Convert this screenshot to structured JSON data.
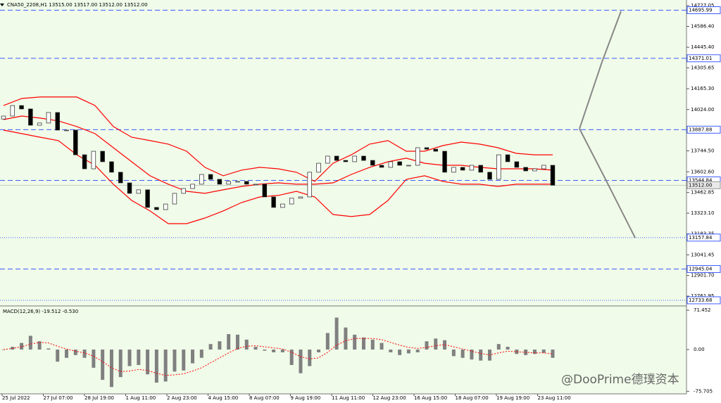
{
  "chart_data": {
    "type": "candlestick",
    "title": "CNA50_2208,H1  13515.00 13517.00 13512.00 13512.00",
    "background": "#f0fbe9",
    "up_color": "#ffffff",
    "down_color": "#000000",
    "x_labels": [
      "25 Jul 2022",
      "27 Jul 07:00",
      "28 Jul 19:00",
      "1 Aug 11:00",
      "2 Aug 23:00",
      "4 Aug 15:00",
      "8 Aug 07:00",
      "9 Aug 19:00",
      "11 Aug 11:00",
      "12 Aug 23:00",
      "16 Aug 15:00",
      "18 Aug 07:00",
      "19 Aug 19:00",
      "23 Aug 11:00"
    ],
    "open": [
      13960,
      13980,
      14051,
      14028,
      13918,
      13933,
      14004,
      13885,
      13885,
      13718,
      13623,
      13742,
      13671,
      13600,
      13528,
      13457,
      13481,
      13362,
      13347,
      13385,
      13457,
      13490,
      13519,
      13585,
      13552,
      13519,
      13538,
      13538,
      13519,
      13519,
      13433,
      13362,
      13385,
      13424,
      13433,
      13600,
      13661,
      13709,
      13680,
      13671,
      13709,
      13680,
      13647,
      13633,
      13671,
      13647,
      13647,
      13766,
      13756,
      13742,
      13600,
      13633,
      13614,
      13647,
      13600,
      13552,
      13718,
      13671,
      13633,
      13609,
      13623,
      13647
    ],
    "close": [
      13980,
      14051,
      14028,
      13918,
      13933,
      14004,
      13885,
      13885,
      13718,
      13623,
      13742,
      13671,
      13600,
      13528,
      13457,
      13481,
      13362,
      13347,
      13385,
      13457,
      13490,
      13519,
      13585,
      13552,
      13519,
      13538,
      13538,
      13519,
      13519,
      13433,
      13362,
      13385,
      13424,
      13433,
      13600,
      13661,
      13709,
      13680,
      13671,
      13709,
      13680,
      13647,
      13633,
      13671,
      13647,
      13647,
      13766,
      13756,
      13742,
      13600,
      13633,
      13614,
      13647,
      13600,
      13552,
      13718,
      13671,
      13633,
      13609,
      13623,
      13647,
      13512
    ],
    "ylim": [
      12705,
      14765
    ],
    "yticks": [
      {
        "value": 14727.05,
        "label": "14727.05"
      },
      {
        "value": 14586.4,
        "label": "14586.40"
      },
      {
        "value": 14445.4,
        "label": "14445.40"
      },
      {
        "value": 14305.65,
        "label": "14305.65"
      },
      {
        "value": 14165.3,
        "label": "14165.30"
      },
      {
        "value": 14024,
        "label": "14024.00"
      },
      {
        "value": 13744.5,
        "label": "13744.50"
      },
      {
        "value": 13602.6,
        "label": "13602.60"
      },
      {
        "value": 13462.85,
        "label": "13462.85"
      },
      {
        "value": 13323.1,
        "label": "13323.10"
      },
      {
        "value": 13183.35,
        "label": "13183.35"
      },
      {
        "value": 13041.45,
        "label": "13041.45"
      },
      {
        "value": 12901.7,
        "label": "12901.70"
      },
      {
        "value": 12761.95,
        "label": "12761.95"
      }
    ],
    "bands": {
      "color": "#ff0000",
      "upper": [
        14051,
        14099,
        14109,
        14109,
        14109,
        14051,
        13909,
        13837,
        13814,
        13790,
        13742,
        13633,
        13576,
        13614,
        13633,
        13623,
        13600,
        13538,
        13661,
        13718,
        13790,
        13814,
        13742,
        13742,
        13780,
        13804,
        13790,
        13766,
        13728,
        13718,
        13718
      ],
      "middle": [
        13956,
        13980,
        13966,
        13947,
        13909,
        13861,
        13766,
        13671,
        13576,
        13519,
        13471,
        13457,
        13481,
        13504,
        13519,
        13528,
        13519,
        13519,
        13528,
        13585,
        13633,
        13671,
        13695,
        13661,
        13647,
        13647,
        13633,
        13623,
        13623,
        13623,
        13614
      ],
      "lower": [
        13885,
        13861,
        13837,
        13814,
        13718,
        13647,
        13519,
        13409,
        13338,
        13252,
        13252,
        13290,
        13338,
        13395,
        13433,
        13443,
        13471,
        13433,
        13314,
        13300,
        13314,
        13409,
        13552,
        13576,
        13538,
        13519,
        13519,
        13504,
        13519,
        13519,
        13519
      ]
    },
    "level_color": "#3d5cff",
    "levels": [
      {
        "value": 14695.99,
        "label": "14695.99",
        "style": "dashed"
      },
      {
        "value": 14371.01,
        "label": "14371.01",
        "style": "dashed"
      },
      {
        "value": 13887.88,
        "label": "13887.88",
        "style": "dashed"
      },
      {
        "value": 13544.84,
        "label": "13544.84",
        "style": "dashed"
      },
      {
        "value": 13157.84,
        "label": "13157.84",
        "style": "dotted"
      },
      {
        "value": 12945.04,
        "label": "12945.04",
        "style": "dashed"
      },
      {
        "value": 12733.68,
        "label": "12733.68",
        "style": "dotted"
      }
    ],
    "current_price": {
      "value": 13512,
      "label": "13512.00"
    },
    "macd": {
      "title": "MACD(12,26,9) -19.512 -0.530",
      "histogram_color": "#808080",
      "signal_color": "#ff0000",
      "histogram": [
        0,
        5,
        12,
        25,
        15,
        2,
        -22,
        -15,
        -10,
        -15,
        -33,
        -55,
        -68,
        -50,
        -30,
        -28,
        -45,
        -60,
        -58,
        -40,
        -38,
        -25,
        -15,
        10,
        15,
        28,
        27,
        18,
        5,
        -2,
        -5,
        -5,
        -28,
        -43,
        -30,
        -5,
        30,
        58,
        40,
        27,
        22,
        18,
        12,
        -5,
        -10,
        -7,
        -5,
        15,
        20,
        17,
        -12,
        -15,
        -18,
        -20,
        -20,
        10,
        5,
        -8,
        -10,
        -8,
        -6,
        -15
      ],
      "signal": [
        0,
        2,
        5,
        10,
        13,
        12,
        6,
        1,
        -3,
        -6,
        -12,
        -22,
        -33,
        -40,
        -39,
        -36,
        -38,
        -43,
        -47,
        -46,
        -44,
        -39,
        -33,
        -24,
        -15,
        -6,
        2,
        6,
        7,
        5,
        3,
        1,
        -5,
        -13,
        -17,
        -15,
        -5,
        8,
        16,
        20,
        20,
        20,
        18,
        13,
        8,
        4,
        2,
        4,
        7,
        9,
        5,
        1,
        -3,
        -7,
        -10,
        -6,
        -3,
        -4,
        -5,
        -6,
        -6,
        -8
      ],
      "ylim": [
        -80.4,
        76.6
      ],
      "yticks": [
        71.452,
        {
          "value": 0,
          "label": "0.00"
        },
        -75.705
      ]
    }
  },
  "watermark": "@DooPrime德璞资本"
}
